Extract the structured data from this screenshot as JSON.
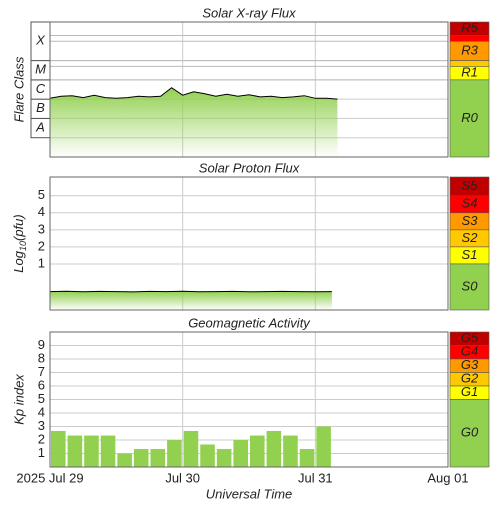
{
  "time_axis": {
    "label": "Universal Time",
    "xlim": [
      "2025-07-29T00:00Z",
      "2025-08-01T00:00Z"
    ],
    "xticks": [
      {
        "value": "2025-07-29T00:00Z",
        "label": "2025 Jul 29"
      },
      {
        "value": "2025-07-30T00:00Z",
        "label": "Jul 30"
      },
      {
        "value": "2025-07-31T00:00Z",
        "label": "Jul 31"
      },
      {
        "value": "2025-08-01T00:00Z",
        "label": "Aug 01"
      }
    ]
  },
  "chart_data": [
    {
      "type": "line",
      "title": "Solar X-ray Flux",
      "y_label": "Flare Class",
      "log_scale": true,
      "ylim": [
        1e-09,
        0.01
      ],
      "color": "#000000",
      "fill_color": "#92d050",
      "class_bands": [
        {
          "label": "A",
          "range": [
            1e-08,
            1e-07
          ]
        },
        {
          "label": "B",
          "range": [
            1e-07,
            1e-06
          ]
        },
        {
          "label": "C",
          "range": [
            1e-06,
            1e-05
          ]
        },
        {
          "label": "M",
          "range": [
            1e-05,
            0.0001
          ]
        },
        {
          "label": "X",
          "range": [
            0.0001,
            null
          ]
        }
      ],
      "scale_bands": [
        {
          "label": "R5",
          "range": [
            0.002,
            null
          ],
          "color": "#c00000"
        },
        {
          "range": [
            0.001,
            0.002
          ],
          "color": "#ff0000"
        },
        {
          "label": "R3",
          "range": [
            0.0001,
            0.001
          ],
          "color": "#ff9900"
        },
        {
          "range": [
            5e-05,
            0.0001
          ],
          "color": "#ffc800"
        },
        {
          "label": "R1",
          "range": [
            1e-05,
            5e-05
          ],
          "color": "#ffff00"
        },
        {
          "label": "R0",
          "range": [
            null,
            1e-05
          ],
          "color": "#92d050"
        }
      ],
      "x": [
        "2025-07-29T00:00Z",
        "2025-07-29T02:00Z",
        "2025-07-29T04:00Z",
        "2025-07-29T06:00Z",
        "2025-07-29T08:00Z",
        "2025-07-29T10:00Z",
        "2025-07-29T12:00Z",
        "2025-07-29T14:00Z",
        "2025-07-29T16:00Z",
        "2025-07-29T18:00Z",
        "2025-07-29T20:00Z",
        "2025-07-29T22:00Z",
        "2025-07-30T00:00Z",
        "2025-07-30T02:00Z",
        "2025-07-30T04:00Z",
        "2025-07-30T06:00Z",
        "2025-07-30T08:00Z",
        "2025-07-30T10:00Z",
        "2025-07-30T12:00Z",
        "2025-07-30T14:00Z",
        "2025-07-30T16:00Z",
        "2025-07-30T18:00Z",
        "2025-07-30T20:00Z",
        "2025-07-30T22:00Z",
        "2025-07-31T00:00Z",
        "2025-07-31T02:00Z",
        "2025-07-31T04:00Z"
      ],
      "values": [
        1.1e-06,
        1.4e-06,
        1.5e-06,
        1.2e-06,
        1.6e-06,
        1.2e-06,
        1.1e-06,
        1.2e-06,
        1.4e-06,
        1.3e-06,
        1.4e-06,
        3.9e-06,
        1.6e-06,
        2.4e-06,
        1.9e-06,
        1.4e-06,
        1.8e-06,
        1.4e-06,
        1.7e-06,
        1.3e-06,
        1.4e-06,
        1.2e-06,
        1.3e-06,
        1.5e-06,
        1.1e-06,
        1.1e-06,
        1e-06
      ]
    },
    {
      "type": "line",
      "title": "Solar Proton Flux",
      "y_label": {
        "base": "Log",
        "subscript": "10",
        "rest": "(pfu)"
      },
      "ylim": [
        -1.7,
        6.1
      ],
      "yticks": [
        1,
        2,
        3,
        4,
        5
      ],
      "color": "#000000",
      "fill_color": "#92d050",
      "scale_bands": [
        {
          "label": "S5",
          "range": [
            5,
            null
          ],
          "color": "#c00000"
        },
        {
          "label": "S4",
          "range": [
            4,
            5
          ],
          "color": "#ff0000"
        },
        {
          "label": "S3",
          "range": [
            3,
            4
          ],
          "color": "#ff9900"
        },
        {
          "label": "S2",
          "range": [
            2,
            3
          ],
          "color": "#ffc800"
        },
        {
          "label": "S1",
          "range": [
            1,
            2
          ],
          "color": "#ffff00"
        },
        {
          "label": "S0",
          "range": [
            null,
            1
          ],
          "color": "#92d050"
        }
      ],
      "x": [
        "2025-07-29T00:00Z",
        "2025-07-29T03:00Z",
        "2025-07-29T06:00Z",
        "2025-07-29T09:00Z",
        "2025-07-29T12:00Z",
        "2025-07-29T15:00Z",
        "2025-07-29T18:00Z",
        "2025-07-29T21:00Z",
        "2025-07-30T00:00Z",
        "2025-07-30T03:00Z",
        "2025-07-30T06:00Z",
        "2025-07-30T09:00Z",
        "2025-07-30T12:00Z",
        "2025-07-30T15:00Z",
        "2025-07-30T18:00Z",
        "2025-07-30T21:00Z",
        "2025-07-31T00:00Z",
        "2025-07-31T03:00Z"
      ],
      "values": [
        -0.62,
        -0.6,
        -0.63,
        -0.61,
        -0.62,
        -0.64,
        -0.61,
        -0.62,
        -0.6,
        -0.63,
        -0.62,
        -0.61,
        -0.63,
        -0.62,
        -0.61,
        -0.62,
        -0.63,
        -0.62
      ]
    },
    {
      "type": "bar",
      "title": "Geomagnetic Activity",
      "y_label": "Kp index",
      "ylim": [
        0,
        10
      ],
      "yticks": [
        1,
        2,
        3,
        4,
        5,
        6,
        7,
        8,
        9
      ],
      "color": "#92d050",
      "scale_bands": [
        {
          "label": "G5",
          "range": [
            9,
            null
          ],
          "color": "#c00000"
        },
        {
          "label": "G4",
          "range": [
            8,
            9
          ],
          "color": "#ff0000"
        },
        {
          "label": "G3",
          "range": [
            7,
            8
          ],
          "color": "#ff9900"
        },
        {
          "label": "G2",
          "range": [
            6,
            7
          ],
          "color": "#ffc800"
        },
        {
          "label": "G1",
          "range": [
            5,
            6
          ],
          "color": "#ffff00"
        },
        {
          "label": "G0",
          "range": [
            null,
            5
          ],
          "color": "#92d050"
        }
      ],
      "x": [
        "2025-07-29T00:00Z",
        "2025-07-29T03:00Z",
        "2025-07-29T06:00Z",
        "2025-07-29T09:00Z",
        "2025-07-29T12:00Z",
        "2025-07-29T15:00Z",
        "2025-07-29T18:00Z",
        "2025-07-29T21:00Z",
        "2025-07-30T00:00Z",
        "2025-07-30T03:00Z",
        "2025-07-30T06:00Z",
        "2025-07-30T09:00Z",
        "2025-07-30T12:00Z",
        "2025-07-30T15:00Z",
        "2025-07-30T18:00Z",
        "2025-07-30T21:00Z",
        "2025-07-31T00:00Z"
      ],
      "values": [
        2.67,
        2.33,
        2.33,
        2.33,
        1.0,
        1.33,
        1.33,
        2.0,
        2.67,
        1.67,
        1.33,
        2.0,
        2.33,
        2.67,
        2.33,
        1.33,
        3.0
      ]
    }
  ]
}
